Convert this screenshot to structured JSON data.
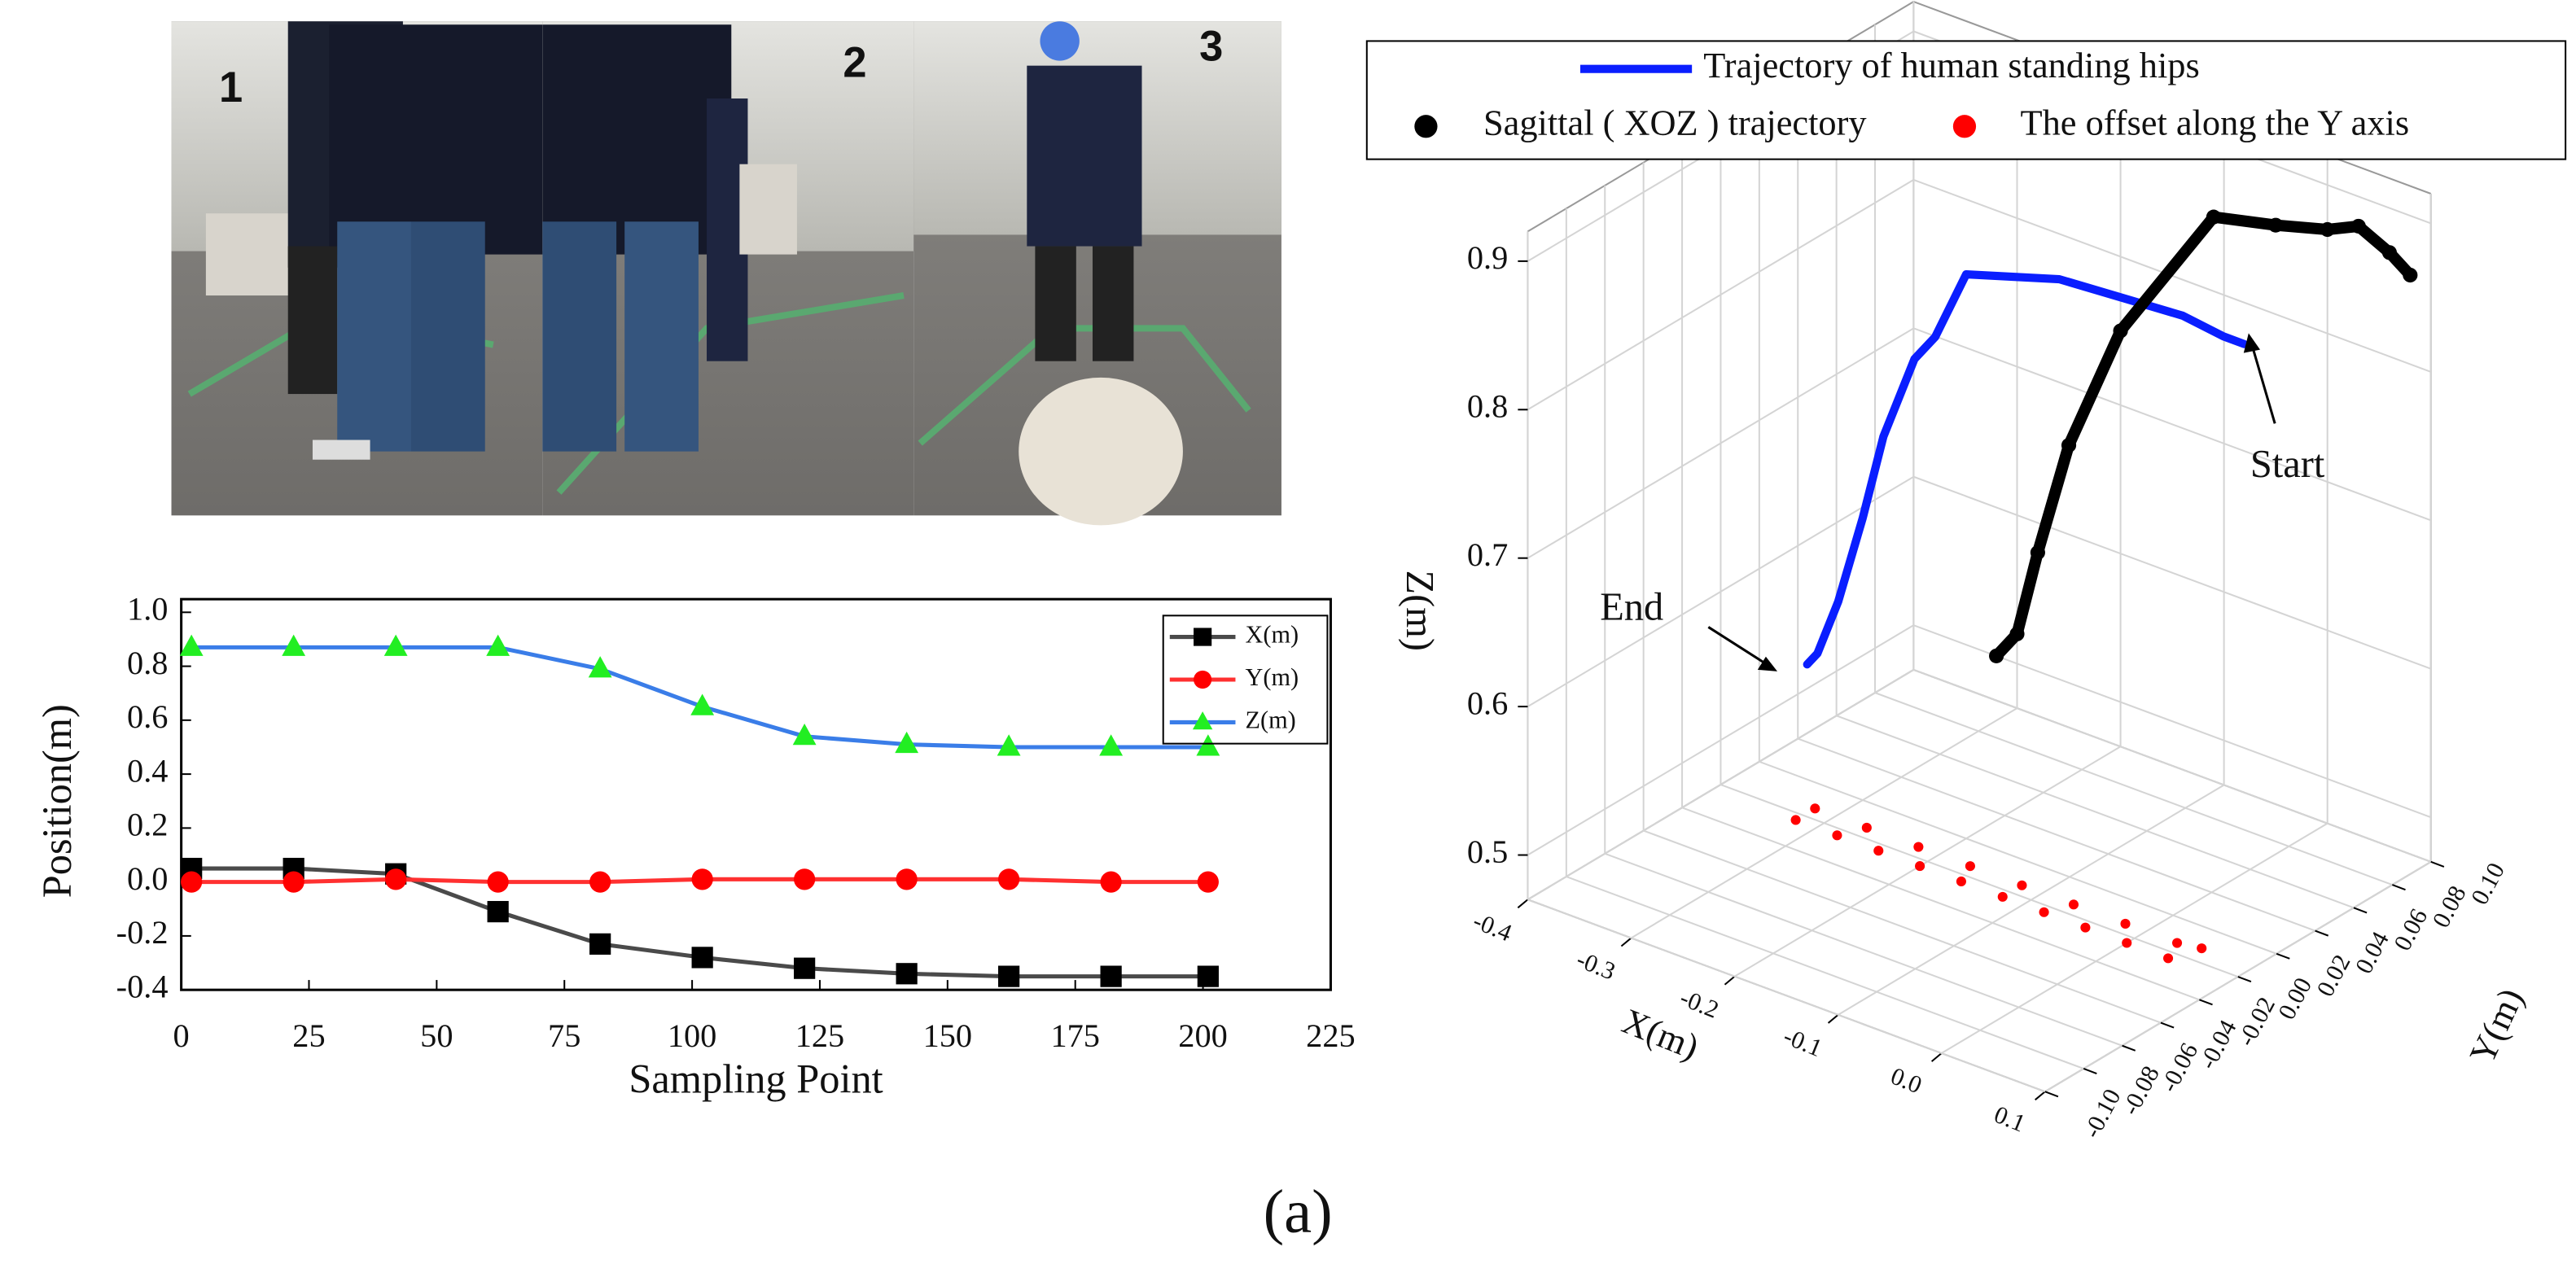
{
  "photo_labels": [
    "1",
    "2",
    "3"
  ],
  "caption": "(a)",
  "chart_data": [
    {
      "type": "line",
      "xlabel": "Sampling Point",
      "ylabel": "Position(m)",
      "xlim": [
        0,
        225
      ],
      "xticks": [
        0,
        25,
        50,
        75,
        100,
        125,
        150,
        175,
        200,
        225
      ],
      "ylim": [
        -0.4,
        1.0
      ],
      "yticks": [
        -0.4,
        -0.2,
        {
          "value": 0,
          "label": "0.0"
        },
        0.2,
        0.4,
        0.6,
        0.8,
        {
          "value": 1,
          "label": "1.0"
        }
      ],
      "x": [
        2,
        22,
        42,
        62,
        82,
        102,
        122,
        142,
        162,
        182,
        201
      ],
      "series": [
        {
          "name": "X(m)",
          "color": "#4a4a4a",
          "marker": "square",
          "marker_color": "#000000",
          "values": [
            0.05,
            0.05,
            0.03,
            -0.11,
            -0.23,
            -0.28,
            -0.32,
            -0.34,
            -0.35,
            -0.35,
            -0.35
          ]
        },
        {
          "name": "Y(m)",
          "color": "#ff3030",
          "marker": "circle",
          "marker_color": "#ff0000",
          "values": [
            0,
            0,
            0.01,
            0,
            0,
            0.01,
            0.01,
            0.01,
            0.01,
            0,
            0
          ]
        },
        {
          "name": "Z(m)",
          "color": "#3a7de8",
          "marker": "triangle",
          "marker_color": "#22ee22",
          "values": [
            0.87,
            0.87,
            0.87,
            0.87,
            0.79,
            0.65,
            0.54,
            0.51,
            0.5,
            0.5,
            0.5
          ]
        }
      ]
    },
    {
      "type": "line3d",
      "xlabel": "X(m)",
      "ylabel": "Y(m)",
      "zlabel": "Z(m)",
      "xlim": [
        -0.4,
        0.1
      ],
      "xticks": [
        -0.4,
        -0.3,
        -0.2,
        -0.1,
        {
          "value": 0,
          "label": "0.0"
        },
        0.1
      ],
      "ylim": [
        -0.1,
        0.1
      ],
      "yticks": [
        {
          "value": -0.1,
          "label": "-0.10"
        },
        {
          "value": -0.08,
          "label": "-0.08"
        },
        {
          "value": -0.06,
          "label": "-0.06"
        },
        {
          "value": -0.04,
          "label": "-0.04"
        },
        {
          "value": -0.02,
          "label": "-0.02"
        },
        {
          "value": 0,
          "label": "0.00"
        },
        {
          "value": 0.02,
          "label": "0.02"
        },
        {
          "value": 0.04,
          "label": "0.04"
        },
        {
          "value": 0.06,
          "label": "0.06"
        },
        {
          "value": 0.08,
          "label": "0.08"
        },
        {
          "value": 0.1,
          "label": "0.10"
        }
      ],
      "zlim": [
        0.47,
        0.92
      ],
      "zticks": [
        0.5,
        0.6,
        0.7,
        0.8,
        0.9
      ],
      "grid": true,
      "annotations": [
        "Start",
        "End"
      ],
      "series": [
        {
          "name": "Trajectory of human standing hips",
          "color": "#0a1eff",
          "mode": "lines",
          "x": [
            0.05,
            0.03,
            0.0,
            -0.11,
            -0.2,
            -0.23,
            -0.25,
            -0.28,
            -0.3,
            -0.32,
            -0.34,
            -0.35
          ],
          "y": [
            0.03,
            0.03,
            0.025,
            0.02,
            0.02,
            0.02,
            0.02,
            0.02,
            0.02,
            0.018,
            0.018,
            0.018
          ],
          "z": [
            0.86,
            0.86,
            0.87,
            0.87,
            0.85,
            0.8,
            0.78,
            0.72,
            0.66,
            0.6,
            0.56,
            0.55
          ]
        },
        {
          "name": "Sagittal ( XOZ ) trajectory",
          "color": "#000000",
          "mode": "lines+markers",
          "x": [
            0.08,
            0.06,
            0.03,
            0.0,
            -0.05,
            -0.11,
            -0.2,
            -0.25,
            -0.28,
            -0.3,
            -0.32
          ],
          "y": [
            0.1,
            0.1,
            0.1,
            0.1,
            0.1,
            0.1,
            0.1,
            0.1,
            0.1,
            0.1,
            0.1
          ],
          "z": [
            0.86,
            0.87,
            0.88,
            0.87,
            0.86,
            0.85,
            0.75,
            0.66,
            0.58,
            0.52,
            0.5
          ]
        },
        {
          "name": "The offset along the Y axis",
          "color": "#ff0000",
          "mode": "markers",
          "x": [
            -0.32,
            -0.28,
            -0.24,
            -0.2,
            -0.16,
            -0.12,
            -0.08,
            -0.04,
            0.0,
            0.04,
            -0.32,
            -0.27,
            -0.22,
            -0.17,
            -0.12,
            -0.07,
            -0.02,
            0.03,
            0.05
          ],
          "y": [
            -0.004,
            -0.004,
            -0.004,
            -0.004,
            -0.004,
            -0.004,
            -0.004,
            -0.004,
            -0.004,
            -0.004,
            0.006,
            0.006,
            0.006,
            0.006,
            0.006,
            0.006,
            0.006,
            0.006,
            0.008
          ]
        }
      ]
    }
  ]
}
